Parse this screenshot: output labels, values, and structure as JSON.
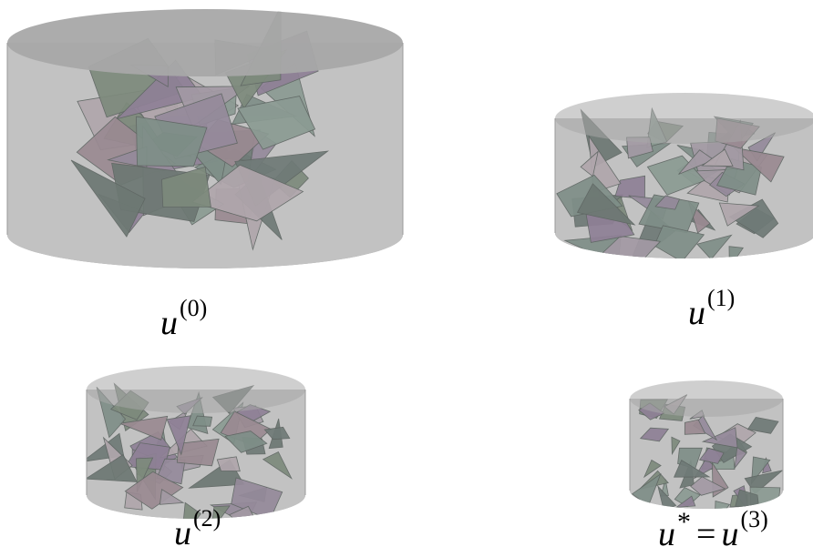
{
  "panels": [
    {
      "id": "u0",
      "label": {
        "base": "u",
        "sup": "(0)"
      }
    },
    {
      "id": "u1",
      "label": {
        "base": "u",
        "sup": "(1)"
      }
    },
    {
      "id": "u2",
      "label": {
        "base": "u",
        "sup": "(2)"
      }
    },
    {
      "id": "u3",
      "label": {
        "base": "u",
        "star": "*",
        "eq": "=",
        "base2": "u",
        "sup": "(3)"
      }
    }
  ],
  "colors": {
    "cylinder_top": "#a8a8a8",
    "cylinder_body": "#c2c2c2",
    "cylinder_bottom": "#a3a3a3",
    "cylinder_edge": "#9a9a9a",
    "piece_palette": [
      "#7d8a7c",
      "#8f8096",
      "#9a8a92",
      "#6f7a77",
      "#a39aa4",
      "#7f8f88",
      "#958a9b",
      "#b0a6ac",
      "#6d7873",
      "#8b9b93"
    ]
  }
}
